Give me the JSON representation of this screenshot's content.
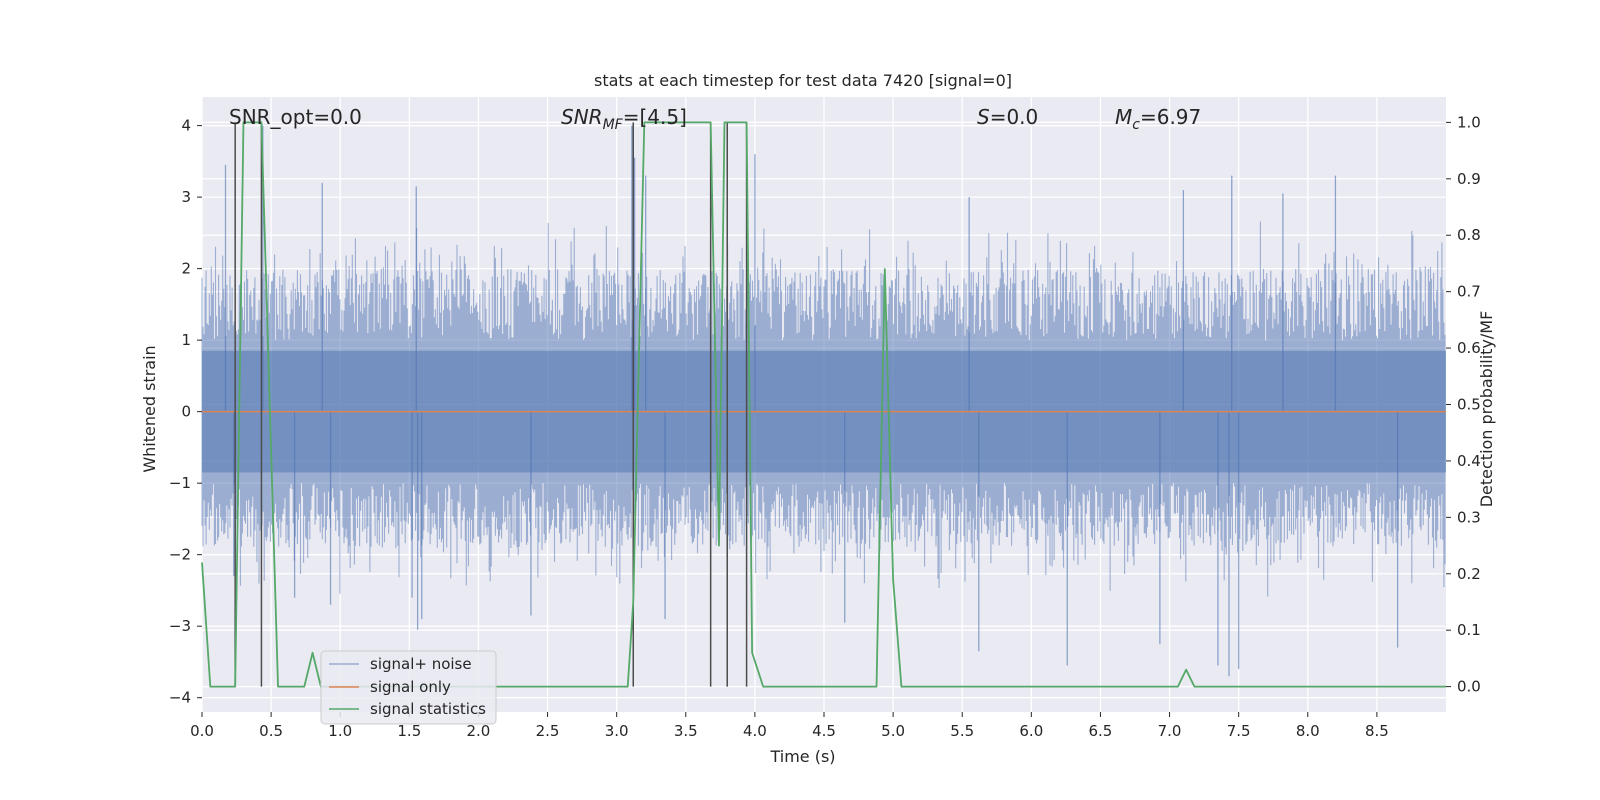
{
  "chart_data": {
    "type": "line",
    "title": "stats at each timestep for test data 7420 [signal=0]",
    "xlabel": "Time (s)",
    "ylabel_left": "Whitened strain",
    "ylabel_right": "Detection probability/MF",
    "xlim": [
      0.0,
      9.0
    ],
    "ylim_left": [
      -4.2,
      4.4
    ],
    "ylim_right": [
      -0.045,
      1.045
    ],
    "x_ticks": [
      0.0,
      0.5,
      1.0,
      1.5,
      2.0,
      2.5,
      3.0,
      3.5,
      4.0,
      4.5,
      5.0,
      5.5,
      6.0,
      6.5,
      7.0,
      7.5,
      8.0,
      8.5
    ],
    "x_tick_labels": [
      "0.0",
      "0.5",
      "1.0",
      "1.5",
      "2.0",
      "2.5",
      "3.0",
      "3.5",
      "4.0",
      "4.5",
      "5.0",
      "5.5",
      "6.0",
      "6.5",
      "7.0",
      "7.5",
      "8.0",
      "8.5"
    ],
    "y_left_ticks": [
      -4,
      -3,
      -2,
      -1,
      0,
      1,
      2,
      3,
      4
    ],
    "y_left_tick_labels": [
      "−4",
      "−3",
      "−2",
      "−1",
      "0",
      "1",
      "2",
      "3",
      "4"
    ],
    "y_right_ticks": [
      0.0,
      0.1,
      0.2,
      0.3,
      0.4,
      0.5,
      0.6,
      0.7,
      0.8,
      0.9,
      1.0
    ],
    "y_right_tick_labels": [
      "0.0",
      "0.1",
      "0.2",
      "0.3",
      "0.4",
      "0.5",
      "0.6",
      "0.7",
      "0.8",
      "0.9",
      "1.0"
    ],
    "annotations": {
      "snr_opt": "SNR_opt=0.0",
      "snr_mf_base": "SNR",
      "snr_mf_sub": "MF",
      "snr_mf_value": "=[4.5]",
      "s_var": "S",
      "s_value": "=0.0",
      "mc_base": "M",
      "mc_sub": "c",
      "mc_value": "=6.97"
    },
    "legend": {
      "placement": "lower-left",
      "entries": [
        "signal+ noise",
        "signal only",
        "signal statistics"
      ]
    },
    "series": [
      {
        "name": "signal+ noise",
        "kind": "noise-band",
        "color": "#4c72b0",
        "opacity": 0.5,
        "core_band": [
          -0.85,
          0.85
        ],
        "samples": 1200,
        "seed": 7420,
        "spikes": [
          {
            "x": 0.17,
            "y": 3.45
          },
          {
            "x": 0.23,
            "y": -2.3
          },
          {
            "x": 0.44,
            "y": 4.0
          },
          {
            "x": 0.67,
            "y": -2.6
          },
          {
            "x": 0.87,
            "y": 3.2
          },
          {
            "x": 0.93,
            "y": -2.7
          },
          {
            "x": 1.55,
            "y": 3.15
          },
          {
            "x": 1.56,
            "y": -3.05
          },
          {
            "x": 1.59,
            "y": -2.9
          },
          {
            "x": 1.52,
            "y": -2.6
          },
          {
            "x": 2.38,
            "y": -2.85
          },
          {
            "x": 3.11,
            "y": 4.0
          },
          {
            "x": 3.13,
            "y": 3.55
          },
          {
            "x": 3.21,
            "y": 3.3
          },
          {
            "x": 3.35,
            "y": -2.9
          },
          {
            "x": 4.0,
            "y": 3.6
          },
          {
            "x": 4.65,
            "y": -2.95
          },
          {
            "x": 5.55,
            "y": 3.0
          },
          {
            "x": 5.62,
            "y": -3.35
          },
          {
            "x": 6.26,
            "y": -3.55
          },
          {
            "x": 6.93,
            "y": -3.25
          },
          {
            "x": 7.1,
            "y": 3.1
          },
          {
            "x": 7.45,
            "y": 3.3
          },
          {
            "x": 7.35,
            "y": -3.55
          },
          {
            "x": 7.43,
            "y": -3.7
          },
          {
            "x": 7.5,
            "y": -3.6
          },
          {
            "x": 7.82,
            "y": 3.05
          },
          {
            "x": 8.2,
            "y": 3.3
          },
          {
            "x": 8.65,
            "y": -3.3
          }
        ]
      },
      {
        "name": "signal only",
        "kind": "line",
        "color": "#dd8452",
        "axis": "left",
        "x": [
          0.0,
          9.0
        ],
        "y": [
          0.0,
          0.0
        ]
      },
      {
        "name": "signal statistics",
        "kind": "line",
        "color": "#55a868",
        "axis": "right",
        "x": [
          0.0,
          0.06,
          0.24,
          0.3,
          0.43,
          0.55,
          0.55,
          0.74,
          0.8,
          0.86,
          1.0,
          3.08,
          3.12,
          3.2,
          3.68,
          3.74,
          3.78,
          3.86,
          3.94,
          3.98,
          4.06,
          4.2,
          4.88,
          4.94,
          5.0,
          5.06,
          7.06,
          7.12,
          7.18,
          9.0
        ],
        "y": [
          0.22,
          0.0,
          0.0,
          1.0,
          1.0,
          0.0,
          0.0,
          0.0,
          0.06,
          0.0,
          0.0,
          0.0,
          0.15,
          1.0,
          1.0,
          0.25,
          1.0,
          1.0,
          1.0,
          0.06,
          0.0,
          0.0,
          0.0,
          0.74,
          0.19,
          0.0,
          0.0,
          0.03,
          0.0,
          0.0
        ]
      }
    ],
    "vertical_lines": [
      0.24,
      0.43,
      3.12,
      3.68,
      3.8,
      3.94
    ],
    "vertical_line_color": "#4d4d4d",
    "vertical_line_range_right": [
      0.0,
      1.0
    ]
  }
}
